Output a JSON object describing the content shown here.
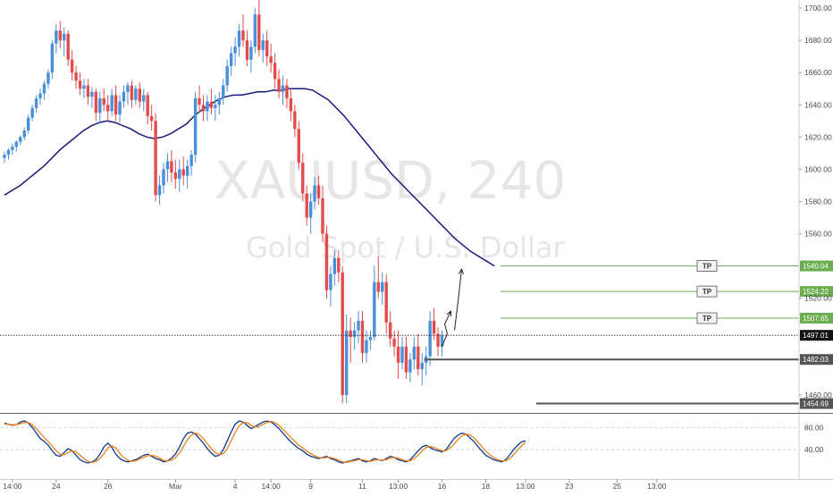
{
  "colors": {
    "up": "#4a8fd9",
    "down": "#e24c4c",
    "ma": "#1a1a7a",
    "target": "#6aae4f",
    "level": "#555555",
    "stoch_k": "#0d3b8c",
    "stoch_d": "#f0821e"
  },
  "watermark": {
    "symbol": "XAUUSD, 240",
    "description": "Gold Spot / U.S. Dollar"
  },
  "chart_data": [
    {
      "type": "candlestick",
      "ylim": [
        1450,
        1705
      ],
      "y_ticks": [
        "1700.00",
        "1680.00",
        "1660.00",
        "1640.00",
        "1620.00",
        "1600.00",
        "1580.00",
        "1560.00",
        "1520.00",
        "1460.00"
      ],
      "x_ticks": [
        {
          "label": "14:00",
          "i": 2
        },
        {
          "label": "24",
          "i": 13
        },
        {
          "label": "26",
          "i": 26
        },
        {
          "label": "Mar",
          "i": 43
        },
        {
          "label": "4",
          "i": 58
        },
        {
          "label": "14:00",
          "i": 67
        },
        {
          "label": "9",
          "i": 77
        },
        {
          "label": "11",
          "i": 90
        },
        {
          "label": "13:00",
          "i": 99
        },
        {
          "label": "16",
          "i": 110
        },
        {
          "label": "18",
          "i": 121
        },
        {
          "label": "13:00",
          "i": 131
        },
        {
          "label": "23",
          "i": 142
        },
        {
          "label": "25",
          "i": 154
        },
        {
          "label": "13:00",
          "i": 164
        }
      ],
      "candles": [
        [
          1607,
          1611,
          1604,
          1609
        ],
        [
          1609,
          1613,
          1606,
          1612
        ],
        [
          1612,
          1616,
          1609,
          1614
        ],
        [
          1614,
          1618,
          1611,
          1617
        ],
        [
          1617,
          1621,
          1615,
          1620
        ],
        [
          1620,
          1626,
          1618,
          1624
        ],
        [
          1624,
          1634,
          1622,
          1632
        ],
        [
          1632,
          1640,
          1630,
          1638
        ],
        [
          1638,
          1646,
          1635,
          1644
        ],
        [
          1644,
          1650,
          1640,
          1647
        ],
        [
          1647,
          1655,
          1643,
          1653
        ],
        [
          1653,
          1662,
          1650,
          1660
        ],
        [
          1660,
          1680,
          1656,
          1678
        ],
        [
          1678,
          1690,
          1672,
          1686
        ],
        [
          1686,
          1692,
          1675,
          1680
        ],
        [
          1680,
          1688,
          1670,
          1684
        ],
        [
          1684,
          1686,
          1664,
          1668
        ],
        [
          1668,
          1674,
          1655,
          1660
        ],
        [
          1660,
          1664,
          1650,
          1655
        ],
        [
          1655,
          1660,
          1646,
          1650
        ],
        [
          1650,
          1656,
          1644,
          1652
        ],
        [
          1652,
          1656,
          1640,
          1645
        ],
        [
          1645,
          1651,
          1638,
          1648
        ],
        [
          1648,
          1650,
          1630,
          1635
        ],
        [
          1635,
          1648,
          1628,
          1644
        ],
        [
          1644,
          1650,
          1636,
          1640
        ],
        [
          1640,
          1646,
          1630,
          1636
        ],
        [
          1636,
          1650,
          1633,
          1646
        ],
        [
          1646,
          1652,
          1630,
          1634
        ],
        [
          1634,
          1646,
          1629,
          1642
        ],
        [
          1642,
          1652,
          1638,
          1648
        ],
        [
          1648,
          1654,
          1640,
          1652
        ],
        [
          1652,
          1655,
          1638,
          1643
        ],
        [
          1643,
          1652,
          1640,
          1650
        ],
        [
          1650,
          1654,
          1638,
          1642
        ],
        [
          1642,
          1650,
          1636,
          1646
        ],
        [
          1646,
          1648,
          1628,
          1633
        ],
        [
          1633,
          1640,
          1624,
          1630
        ],
        [
          1630,
          1635,
          1580,
          1584
        ],
        [
          1584,
          1596,
          1578,
          1590
        ],
        [
          1590,
          1604,
          1585,
          1600
        ],
        [
          1600,
          1610,
          1592,
          1605
        ],
        [
          1605,
          1612,
          1592,
          1598
        ],
        [
          1598,
          1606,
          1588,
          1594
        ],
        [
          1594,
          1606,
          1586,
          1600
        ],
        [
          1600,
          1608,
          1590,
          1596
        ],
        [
          1596,
          1606,
          1588,
          1602
        ],
        [
          1602,
          1612,
          1596,
          1609
        ],
        [
          1609,
          1648,
          1604,
          1644
        ],
        [
          1644,
          1652,
          1635,
          1640
        ],
        [
          1640,
          1646,
          1630,
          1636
        ],
        [
          1636,
          1646,
          1630,
          1642
        ],
        [
          1642,
          1650,
          1634,
          1638
        ],
        [
          1638,
          1646,
          1630,
          1640
        ],
        [
          1640,
          1648,
          1634,
          1644
        ],
        [
          1644,
          1656,
          1640,
          1652
        ],
        [
          1652,
          1668,
          1648,
          1664
        ],
        [
          1664,
          1676,
          1658,
          1672
        ],
        [
          1672,
          1682,
          1664,
          1676
        ],
        [
          1676,
          1690,
          1670,
          1686
        ],
        [
          1686,
          1696,
          1676,
          1680
        ],
        [
          1680,
          1686,
          1664,
          1668
        ],
        [
          1668,
          1680,
          1660,
          1676
        ],
        [
          1676,
          1700,
          1672,
          1696
        ],
        [
          1696,
          1705,
          1670,
          1674
        ],
        [
          1674,
          1684,
          1666,
          1680
        ],
        [
          1680,
          1686,
          1664,
          1670
        ],
        [
          1670,
          1678,
          1660,
          1666
        ],
        [
          1666,
          1672,
          1650,
          1656
        ],
        [
          1656,
          1662,
          1644,
          1648
        ],
        [
          1648,
          1658,
          1640,
          1652
        ],
        [
          1652,
          1656,
          1638,
          1644
        ],
        [
          1644,
          1650,
          1630,
          1636
        ],
        [
          1636,
          1640,
          1620,
          1625
        ],
        [
          1625,
          1630,
          1600,
          1604
        ],
        [
          1604,
          1610,
          1580,
          1585
        ],
        [
          1585,
          1590,
          1565,
          1570
        ],
        [
          1570,
          1585,
          1560,
          1580
        ],
        [
          1580,
          1595,
          1575,
          1590
        ],
        [
          1590,
          1596,
          1578,
          1582
        ],
        [
          1582,
          1590,
          1555,
          1560
        ],
        [
          1560,
          1565,
          1520,
          1525
        ],
        [
          1525,
          1540,
          1515,
          1535
        ],
        [
          1535,
          1550,
          1528,
          1545
        ],
        [
          1545,
          1550,
          1530,
          1536
        ],
        [
          1536,
          1540,
          1455,
          1460
        ],
        [
          1460,
          1510,
          1455,
          1500
        ],
        [
          1500,
          1508,
          1480,
          1496
        ],
        [
          1496,
          1505,
          1488,
          1500
        ],
        [
          1500,
          1512,
          1492,
          1506
        ],
        [
          1506,
          1512,
          1480,
          1486
        ],
        [
          1486,
          1500,
          1480,
          1494
        ],
        [
          1494,
          1500,
          1488,
          1496
        ],
        [
          1496,
          1540,
          1494,
          1530
        ],
        [
          1530,
          1546,
          1520,
          1524
        ],
        [
          1524,
          1536,
          1516,
          1530
        ],
        [
          1530,
          1535,
          1498,
          1505
        ],
        [
          1505,
          1512,
          1490,
          1495
        ],
        [
          1495,
          1500,
          1484,
          1490
        ],
        [
          1490,
          1500,
          1470,
          1480
        ],
        [
          1480,
          1496,
          1476,
          1490
        ],
        [
          1490,
          1496,
          1470,
          1474
        ],
        [
          1474,
          1486,
          1468,
          1482
        ],
        [
          1482,
          1496,
          1476,
          1490
        ],
        [
          1490,
          1498,
          1472,
          1476
        ],
        [
          1476,
          1486,
          1466,
          1480
        ],
        [
          1480,
          1490,
          1472,
          1484
        ],
        [
          1484,
          1512,
          1478,
          1506
        ],
        [
          1506,
          1514,
          1494,
          1498
        ],
        [
          1498,
          1502,
          1484,
          1490
        ],
        [
          1490,
          1500,
          1484,
          1497
        ]
      ],
      "moving_average": [
        1584,
        1587,
        1590,
        1594,
        1598,
        1602,
        1607,
        1612,
        1616,
        1620,
        1624,
        1627,
        1629,
        1630,
        1629,
        1627,
        1625,
        1622,
        1620,
        1619,
        1620,
        1622,
        1625,
        1628,
        1633,
        1637,
        1640,
        1643,
        1645,
        1646,
        1646,
        1647,
        1648,
        1648,
        1649,
        1649,
        1650,
        1650,
        1650,
        1649,
        1646,
        1643,
        1638,
        1633,
        1627,
        1621,
        1615,
        1609,
        1603,
        1597,
        1592,
        1587,
        1582,
        1577,
        1572,
        1567,
        1562,
        1557,
        1553,
        1549,
        1546,
        1543,
        1540
      ],
      "levels": [
        {
          "label": "1540.04",
          "value": 1540.04,
          "kind": "target",
          "tp": "TP"
        },
        {
          "label": "1524.22",
          "value": 1524.22,
          "kind": "target",
          "tp": "TP"
        },
        {
          "label": "1507.65",
          "value": 1507.65,
          "kind": "target",
          "tp": "TP"
        },
        {
          "label": "1482.03",
          "value": 1482.03,
          "kind": "level"
        },
        {
          "label": "1454.69",
          "value": 1454.69,
          "kind": "level"
        }
      ],
      "current_price": {
        "label": "1497.01",
        "value": 1497.01
      }
    },
    {
      "type": "line",
      "name": "stochastic",
      "ylim": [
        0,
        100
      ],
      "y_ticks": [
        "80.00",
        "40.00"
      ],
      "series": [
        {
          "values": [
            88,
            86,
            84,
            85,
            90,
            92,
            88,
            80,
            70,
            60,
            55,
            48,
            38,
            30,
            28,
            35,
            42,
            38,
            30,
            22,
            18,
            16,
            18,
            22,
            32,
            45,
            52,
            44,
            32,
            24,
            20,
            18,
            20,
            22,
            26,
            30,
            32,
            28,
            24,
            22,
            18,
            20,
            25,
            32,
            45,
            60,
            70,
            72,
            68,
            60,
            52,
            42,
            34,
            28,
            30,
            40,
            56,
            72,
            86,
            92,
            90,
            84,
            78,
            82,
            86,
            90,
            92,
            90,
            85,
            78,
            70,
            62,
            54,
            48,
            42,
            38,
            32,
            28,
            26,
            24,
            26,
            28,
            24,
            22,
            18,
            16,
            18,
            20,
            22,
            24,
            20,
            18,
            20,
            24,
            22,
            20,
            24,
            28,
            26,
            22,
            20,
            18,
            22,
            30,
            38,
            45,
            48,
            44,
            40,
            38,
            36,
            40,
            50,
            60,
            66,
            70,
            68,
            62,
            55,
            46,
            38,
            30,
            26,
            22,
            20,
            18,
            22,
            30,
            40,
            48,
            54,
            56
          ]
        },
        {
          "values": [
            86,
            86,
            85,
            85,
            87,
            89,
            89,
            85,
            78,
            70,
            62,
            55,
            47,
            38,
            32,
            31,
            35,
            38,
            36,
            30,
            24,
            19,
            17,
            19,
            24,
            33,
            43,
            47,
            43,
            33,
            26,
            21,
            19,
            20,
            23,
            26,
            29,
            30,
            28,
            25,
            21,
            20,
            21,
            26,
            34,
            46,
            58,
            67,
            70,
            67,
            60,
            51,
            42,
            35,
            31,
            33,
            42,
            56,
            71,
            83,
            89,
            89,
            84,
            81,
            82,
            86,
            89,
            91,
            89,
            84,
            77,
            70,
            62,
            55,
            48,
            43,
            37,
            33,
            29,
            26,
            25,
            26,
            26,
            24,
            21,
            18,
            17,
            19,
            20,
            22,
            22,
            20,
            19,
            21,
            22,
            21,
            22,
            25,
            26,
            25,
            22,
            20,
            20,
            24,
            30,
            38,
            44,
            46,
            44,
            41,
            38,
            38,
            43,
            50,
            58,
            65,
            68,
            67,
            62,
            54,
            46,
            38,
            31,
            26,
            22,
            20,
            20,
            24,
            31,
            39,
            47,
            53
          ]
        }
      ]
    }
  ]
}
